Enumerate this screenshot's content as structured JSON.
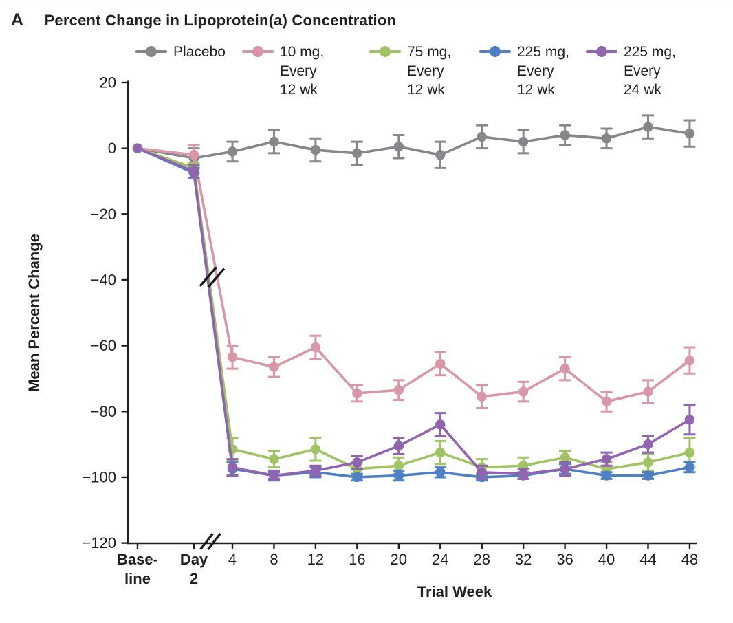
{
  "title": {
    "panel": "A",
    "text": "Percent Change in Lipoprotein(a) Concentration"
  },
  "colors": {
    "ink": "#231f20",
    "break_mark": "#1b1b1b",
    "placebo": "#85878a",
    "dose_10mg_q12": "#d897a6",
    "dose_75mg_q12": "#a0c463",
    "dose_225mg_q12": "#4e80c3",
    "dose_225mg_q24": "#9064ae"
  },
  "axes": {
    "y_ticks": [
      {
        "value": 20,
        "label": "20"
      },
      {
        "value": 0,
        "label": "0"
      },
      {
        "value": -20,
        "label": "−20"
      },
      {
        "value": -40,
        "label": "−40"
      },
      {
        "value": -60,
        "label": "−60"
      },
      {
        "value": -80,
        "label": "−80"
      },
      {
        "value": -100,
        "label": "−100"
      },
      {
        "value": -120,
        "label": "−120"
      }
    ],
    "x_ticks": [
      {
        "label": "Base-\nline",
        "bold": true
      },
      {
        "label": "Day\n2",
        "bold": true
      },
      {
        "label": "4"
      },
      {
        "label": "8"
      },
      {
        "label": "12"
      },
      {
        "label": "16"
      },
      {
        "label": "20"
      },
      {
        "label": "24"
      },
      {
        "label": "28"
      },
      {
        "label": "32"
      },
      {
        "label": "36"
      },
      {
        "label": "40"
      },
      {
        "label": "44"
      },
      {
        "label": "48"
      }
    ]
  },
  "chart_data": {
    "type": "line",
    "title": "Percent Change in Lipoprotein(a) Concentration",
    "xlabel": "Trial Week",
    "ylabel": "Mean Percent Change",
    "ylim": [
      -120,
      20
    ],
    "grid": false,
    "legend_position": "top",
    "x_categories": [
      "Baseline",
      "Day 2",
      "4",
      "8",
      "12",
      "16",
      "20",
      "24",
      "28",
      "32",
      "36",
      "40",
      "44",
      "48"
    ],
    "axis_break_between": [
      "Day 2",
      "4"
    ],
    "series": [
      {
        "id": "placebo",
        "name": "Placebo",
        "legend_label": "Placebo",
        "color": "#85878a",
        "values": [
          0,
          -3,
          -1,
          2,
          -0.5,
          -1.5,
          0.5,
          -2,
          3.5,
          2,
          4,
          3,
          6.5,
          4.5
        ],
        "errors": [
          0,
          3,
          3,
          3.5,
          3.5,
          3.5,
          3.5,
          4,
          3.5,
          3.5,
          3,
          3,
          3.5,
          4
        ]
      },
      {
        "id": "dose-10mg-q12wk",
        "name": "10 mg, Every 12 wk",
        "legend_label": "10 mg,\nEvery\n12 wk",
        "color": "#d897a6",
        "values": [
          0,
          -2,
          -63.5,
          -66.5,
          -60.5,
          -74.5,
          -73.5,
          -65.5,
          -75.5,
          -74,
          -67,
          -77,
          -74,
          -64.5
        ],
        "errors": [
          0,
          3,
          3.5,
          3,
          3.5,
          2.5,
          3,
          3.5,
          3.5,
          3,
          3.5,
          3,
          3.5,
          4
        ]
      },
      {
        "id": "dose-75mg-q12wk",
        "name": "75 mg, Every 12 wk",
        "legend_label": "75 mg,\nEvery\n12 wk",
        "color": "#a0c463",
        "values": [
          0,
          -6,
          -91.5,
          -94.5,
          -91.5,
          -97.5,
          -96.5,
          -92.5,
          -97,
          -96.5,
          -94,
          -97.5,
          -95.5,
          -92.5
        ],
        "errors": [
          0,
          1.5,
          3.5,
          2.5,
          3.5,
          2,
          2.5,
          3.5,
          2.5,
          2.5,
          2,
          2,
          2.5,
          4.5
        ]
      },
      {
        "id": "dose-225mg-q12wk",
        "name": "225 mg, Every 12 wk",
        "legend_label": "225 mg,\nEvery\n12 wk",
        "color": "#4e80c3",
        "values": [
          0,
          -7.5,
          -97.5,
          -99.5,
          -98.5,
          -100,
          -99.5,
          -98.5,
          -100,
          -99.5,
          -97.5,
          -99.5,
          -99.5,
          -97
        ],
        "errors": [
          0,
          1.5,
          2,
          1,
          1.5,
          1,
          1.5,
          1.5,
          1,
          1,
          1.5,
          1,
          1,
          1.5
        ]
      },
      {
        "id": "dose-225mg-q24wk",
        "name": "225 mg, Every 24 wk",
        "legend_label": "225 mg,\nEvery\n24 wk",
        "color": "#9064ae",
        "values": [
          0,
          -7,
          -97,
          -99.5,
          -98,
          -95.5,
          -90.5,
          -84,
          -98.5,
          -99,
          -97.5,
          -94.5,
          -90,
          -82.5
        ],
        "errors": [
          0,
          2,
          2.5,
          1.5,
          1.5,
          2,
          2.5,
          3.5,
          2,
          1.5,
          2,
          2,
          2.5,
          4.5
        ]
      }
    ]
  }
}
